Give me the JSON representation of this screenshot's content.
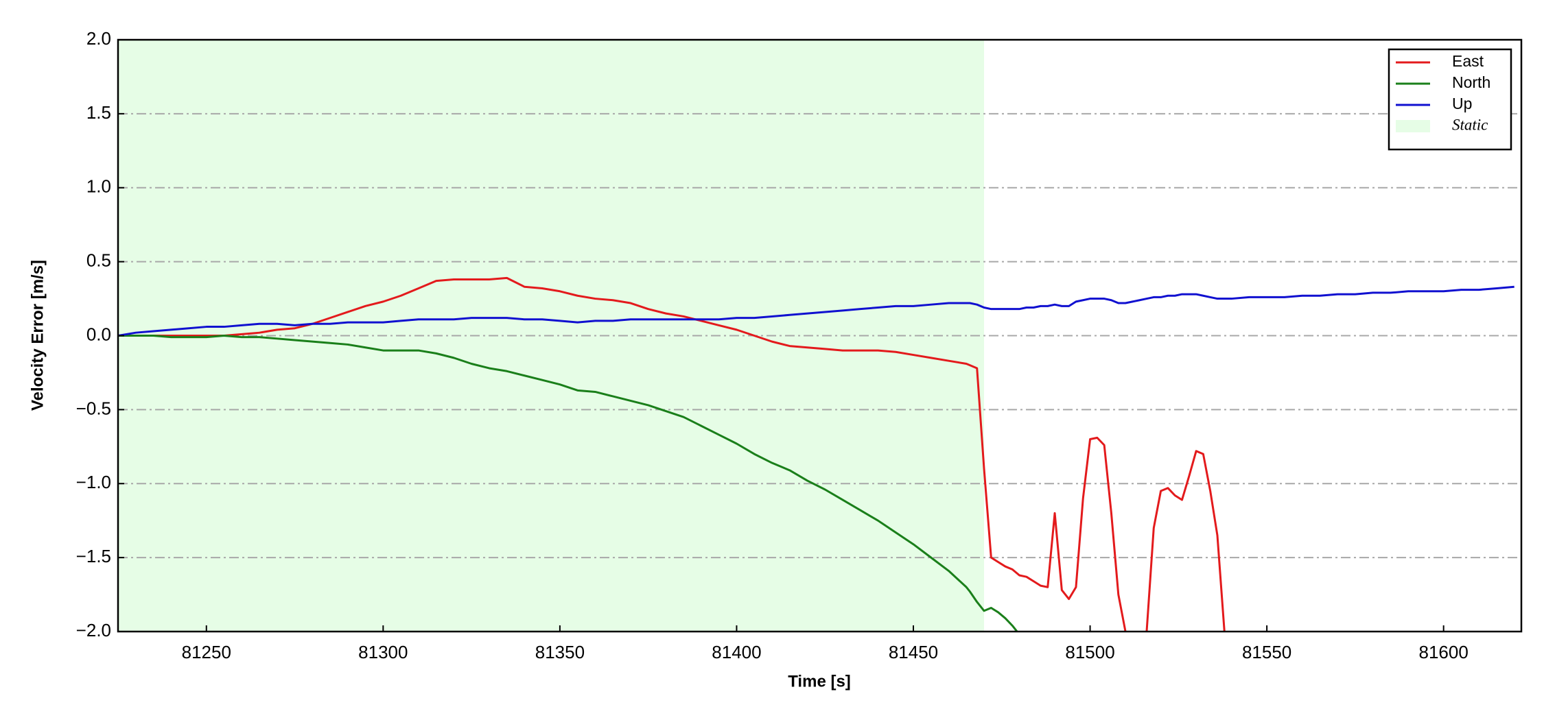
{
  "chart_data": {
    "type": "line",
    "xlabel": "Time [s]",
    "ylabel": "Velocity Error [m/s]",
    "xlim": [
      81225,
      81622
    ],
    "ylim": [
      -2.0,
      2.0
    ],
    "xticks": [
      81250,
      81300,
      81350,
      81400,
      81450,
      81500,
      81550,
      81600
    ],
    "yticks": [
      {
        "value": -2.0,
        "label": "−2.0"
      },
      {
        "value": -1.5,
        "label": "−1.5"
      },
      {
        "value": -1.0,
        "label": "−1.0"
      },
      {
        "value": -0.5,
        "label": "−0.5"
      },
      {
        "value": 0.0,
        "label": "0.0"
      },
      {
        "value": 0.5,
        "label": "0.5"
      },
      {
        "value": 1.0,
        "label": "1.0"
      },
      {
        "value": 1.5,
        "label": "1.5"
      },
      {
        "value": 2.0,
        "label": "2.0"
      }
    ],
    "grid": true,
    "legend": "upper right",
    "shaded_span": {
      "name": "Static",
      "color": "#e6fde6",
      "x": [
        81225,
        81470
      ]
    },
    "x": [
      81225,
      81230,
      81235,
      81240,
      81245,
      81250,
      81255,
      81260,
      81265,
      81270,
      81275,
      81280,
      81285,
      81290,
      81295,
      81300,
      81305,
      81310,
      81315,
      81320,
      81325,
      81330,
      81335,
      81340,
      81345,
      81350,
      81355,
      81360,
      81365,
      81370,
      81375,
      81380,
      81385,
      81390,
      81395,
      81400,
      81405,
      81410,
      81415,
      81420,
      81425,
      81430,
      81435,
      81440,
      81445,
      81450,
      81455,
      81460,
      81465,
      81466,
      81468,
      81470,
      81472,
      81474,
      81476,
      81478,
      81480,
      81482,
      81484,
      81486,
      81488,
      81490,
      81492,
      81494,
      81496,
      81498,
      81500,
      81502,
      81504,
      81506,
      81508,
      81510,
      81512,
      81514,
      81516,
      81518,
      81520,
      81522,
      81524,
      81526,
      81528,
      81530,
      81532,
      81534,
      81536,
      81538,
      81540,
      81545,
      81550,
      81555,
      81560,
      81565,
      81570,
      81575,
      81580,
      81585,
      81590,
      81595,
      81600,
      81605,
      81610,
      81615,
      81620
    ],
    "series": [
      {
        "name": "East",
        "color": "#e31a1c",
        "values": [
          0,
          0,
          0,
          0,
          0,
          0,
          0,
          0.01,
          0.02,
          0.04,
          0.05,
          0.08,
          0.12,
          0.16,
          0.2,
          0.23,
          0.27,
          0.32,
          0.37,
          0.38,
          0.38,
          0.38,
          0.39,
          0.33,
          0.32,
          0.3,
          0.27,
          0.25,
          0.24,
          0.22,
          0.18,
          0.15,
          0.13,
          0.1,
          0.07,
          0.04,
          0,
          -0.04,
          -0.07,
          -0.08,
          -0.09,
          -0.1,
          -0.1,
          -0.1,
          -0.11,
          -0.13,
          -0.15,
          -0.17,
          -0.19,
          -0.2,
          -0.22,
          -0.9,
          -1.5,
          -1.53,
          -1.56,
          -1.58,
          -1.62,
          -1.63,
          -1.66,
          -1.69,
          -1.7,
          -1.2,
          -1.72,
          -1.78,
          -1.7,
          -1.1,
          -0.7,
          -0.69,
          -0.74,
          -1.2,
          -1.75,
          -2.0,
          -2.1,
          -2.1,
          -2.0,
          -1.3,
          -1.05,
          -1.03,
          -1.08,
          -1.11,
          -0.95,
          -0.78,
          -0.8,
          -1.05,
          -1.35,
          -2.0,
          null,
          null,
          null,
          null,
          null,
          null,
          null,
          null,
          null,
          null,
          null,
          null,
          null,
          null,
          null,
          null,
          null
        ]
      },
      {
        "name": "North",
        "color": "#1a7f1a",
        "values": [
          0,
          0,
          0,
          -0.01,
          -0.01,
          -0.01,
          0,
          -0.01,
          -0.01,
          -0.02,
          -0.03,
          -0.04,
          -0.05,
          -0.06,
          -0.08,
          -0.1,
          -0.1,
          -0.1,
          -0.12,
          -0.15,
          -0.19,
          -0.22,
          -0.24,
          -0.27,
          -0.3,
          -0.33,
          -0.37,
          -0.38,
          -0.41,
          -0.44,
          -0.47,
          -0.51,
          -0.55,
          -0.61,
          -0.67,
          -0.73,
          -0.8,
          -0.86,
          -0.91,
          -0.98,
          -1.04,
          -1.11,
          -1.18,
          -1.25,
          -1.33,
          -1.41,
          -1.5,
          -1.59,
          -1.7,
          -1.73,
          -1.8,
          -1.86,
          -1.84,
          -1.87,
          -1.91,
          -1.96,
          -2.02,
          -2.08,
          null,
          null,
          null,
          null,
          null,
          null,
          null,
          null,
          null,
          null,
          null,
          null,
          null,
          null,
          null,
          null,
          null,
          null,
          null,
          null,
          null,
          null,
          null,
          null,
          null,
          null,
          null,
          null,
          null,
          null,
          null,
          null,
          null,
          null,
          null,
          null,
          null,
          null,
          null,
          null,
          null,
          null,
          null,
          null,
          null
        ]
      },
      {
        "name": "Up",
        "color": "#1010d0",
        "values": [
          0,
          0.02,
          0.03,
          0.04,
          0.05,
          0.06,
          0.06,
          0.07,
          0.08,
          0.08,
          0.07,
          0.08,
          0.08,
          0.09,
          0.09,
          0.09,
          0.1,
          0.11,
          0.11,
          0.11,
          0.12,
          0.12,
          0.12,
          0.11,
          0.11,
          0.1,
          0.09,
          0.1,
          0.1,
          0.11,
          0.11,
          0.11,
          0.11,
          0.11,
          0.11,
          0.12,
          0.12,
          0.13,
          0.14,
          0.15,
          0.16,
          0.17,
          0.18,
          0.19,
          0.2,
          0.2,
          0.21,
          0.22,
          0.22,
          0.22,
          0.21,
          0.19,
          0.18,
          0.18,
          0.18,
          0.18,
          0.18,
          0.19,
          0.19,
          0.2,
          0.2,
          0.21,
          0.2,
          0.2,
          0.23,
          0.24,
          0.25,
          0.25,
          0.25,
          0.24,
          0.22,
          0.22,
          0.23,
          0.24,
          0.25,
          0.26,
          0.26,
          0.27,
          0.27,
          0.28,
          0.28,
          0.28,
          0.27,
          0.26,
          0.25,
          0.25,
          0.25,
          0.26,
          0.26,
          0.26,
          0.27,
          0.27,
          0.28,
          0.28,
          0.29,
          0.29,
          0.3,
          0.3,
          0.3,
          0.31,
          0.31,
          0.32,
          0.33
        ]
      }
    ]
  }
}
